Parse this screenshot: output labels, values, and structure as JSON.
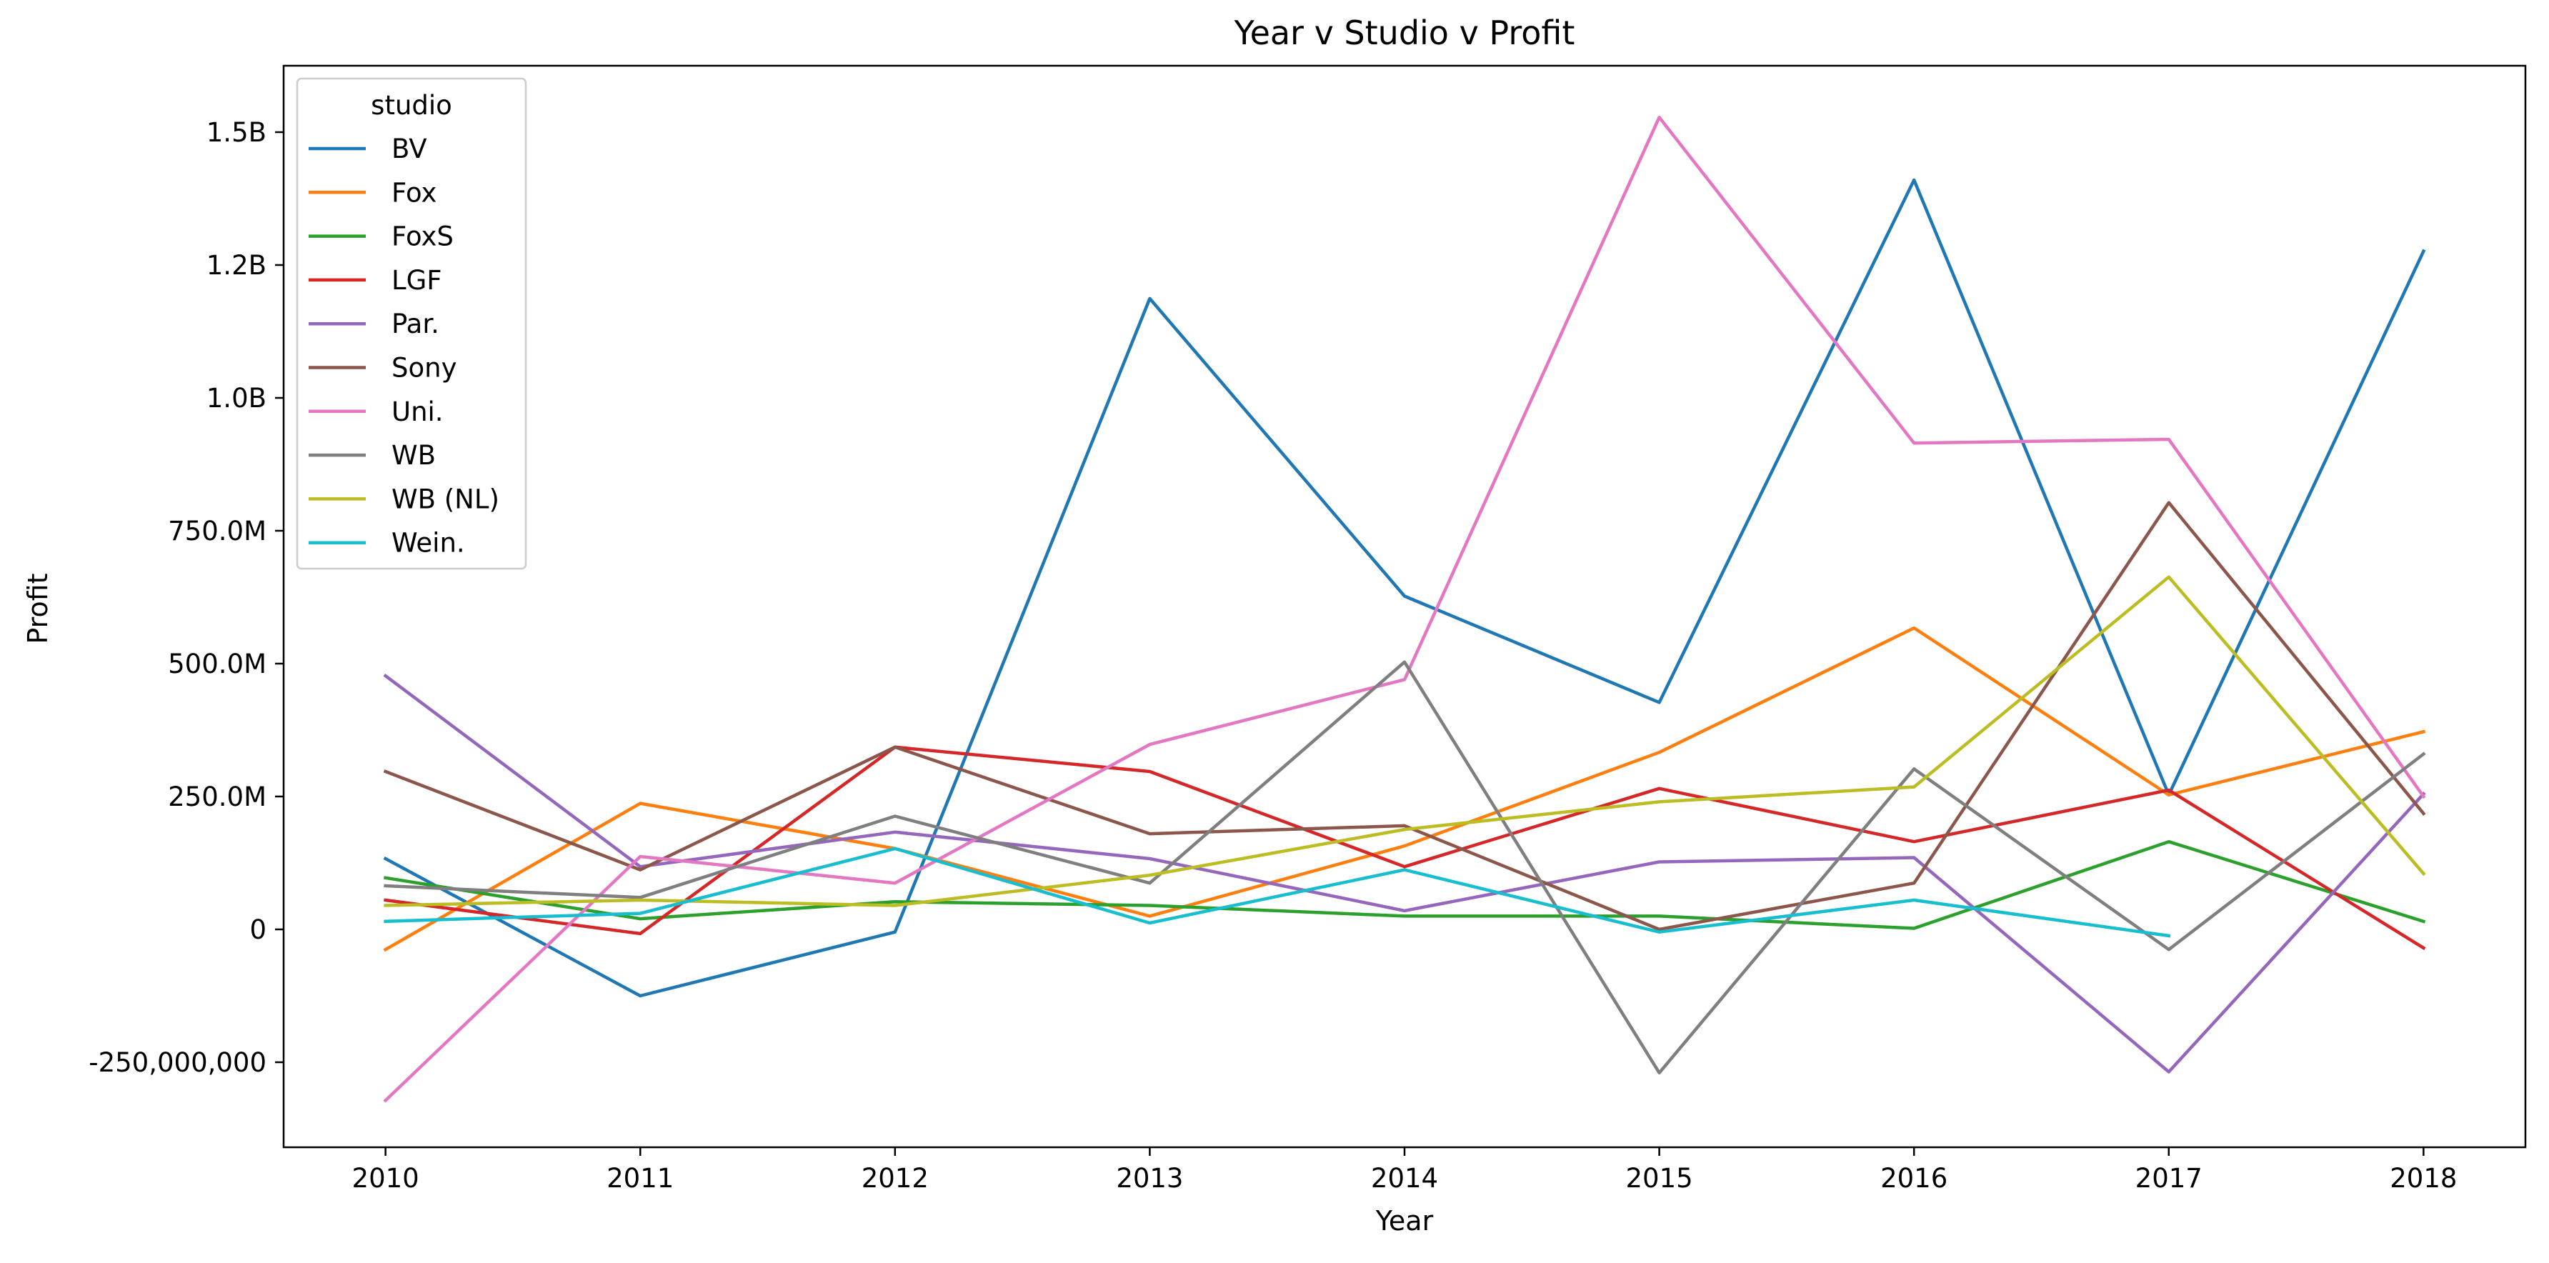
{
  "chart_data": {
    "type": "line",
    "title": "Year v Studio v Profit",
    "xlabel": "Year",
    "ylabel": "Profit",
    "x": [
      2010,
      2011,
      2012,
      2013,
      2014,
      2015,
      2016,
      2017,
      2018
    ],
    "x_tick_labels": [
      "2010",
      "2011",
      "2012",
      "2013",
      "2014",
      "2015",
      "2016",
      "2017",
      "2018"
    ],
    "xlim": [
      2009.6,
      2018.4
    ],
    "ylim": [
      -410000000,
      1625000000
    ],
    "y_ticks": [
      {
        "value": -250000000,
        "label": "-250,000,000"
      },
      {
        "value": 0,
        "label": "0"
      },
      {
        "value": 250000000,
        "label": "250.0M"
      },
      {
        "value": 500000000,
        "label": "500.0M"
      },
      {
        "value": 750000000,
        "label": "750.0M"
      },
      {
        "value": 1000000000,
        "label": "1.0B"
      },
      {
        "value": 1250000000,
        "label": "1.2B"
      },
      {
        "value": 1500000000,
        "label": "1.5B"
      }
    ],
    "grid": false,
    "legend": {
      "title": "studio",
      "placement": "top-left"
    },
    "series": [
      {
        "name": "BV",
        "color": "#1f77b4",
        "values": [
          133000000,
          -125000000,
          -5000000,
          1187000000,
          627000000,
          427000000,
          1410000000,
          253000000,
          1276000000
        ]
      },
      {
        "name": "Fox",
        "color": "#ff7f0e",
        "values": [
          -38000000,
          237000000,
          152000000,
          25000000,
          157000000,
          333000000,
          567000000,
          253000000,
          372000000
        ]
      },
      {
        "name": "FoxS",
        "color": "#2ca02c",
        "values": [
          97000000,
          20000000,
          52000000,
          45000000,
          25000000,
          25000000,
          2000000,
          165000000,
          15000000
        ]
      },
      {
        "name": "LGF",
        "color": "#d62728",
        "values": [
          55000000,
          -8000000,
          343000000,
          297000000,
          118000000,
          265000000,
          165000000,
          262000000,
          -35000000
        ]
      },
      {
        "name": "Par.",
        "color": "#9467bd",
        "values": [
          477000000,
          118000000,
          183000000,
          133000000,
          35000000,
          127000000,
          135000000,
          -268000000,
          255000000
        ]
      },
      {
        "name": "Sony",
        "color": "#8c564b",
        "values": [
          297000000,
          112000000,
          343000000,
          180000000,
          195000000,
          0,
          87000000,
          803000000,
          218000000
        ]
      },
      {
        "name": "Uni.",
        "color": "#e377c2",
        "values": [
          -322000000,
          137000000,
          87000000,
          348000000,
          470000000,
          1528000000,
          915000000,
          922000000,
          250000000
        ]
      },
      {
        "name": "WB",
        "color": "#7f7f7f",
        "values": [
          82000000,
          60000000,
          213000000,
          87000000,
          503000000,
          -270000000,
          302000000,
          -38000000,
          330000000
        ]
      },
      {
        "name": "WB (NL)",
        "color": "#bcbd22",
        "values": [
          45000000,
          55000000,
          45000000,
          102000000,
          188000000,
          240000000,
          268000000,
          663000000,
          105000000
        ]
      },
      {
        "name": "Wein.",
        "color": "#17becf",
        "values": [
          15000000,
          30000000,
          152000000,
          12000000,
          112000000,
          -5000000,
          55000000,
          -12000000,
          null
        ]
      }
    ]
  }
}
